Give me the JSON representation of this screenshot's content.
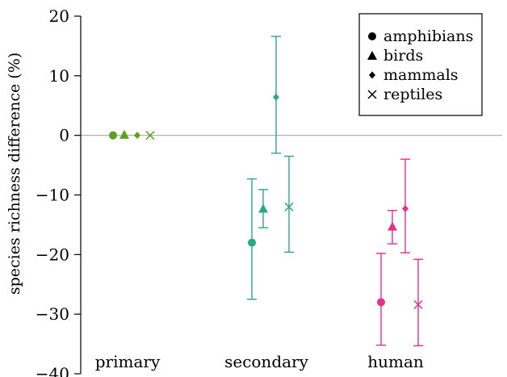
{
  "chart_data": {
    "type": "scatter",
    "title": "",
    "xlabel": "",
    "ylabel": "species richness difference (%)",
    "ylim": [
      -40,
      20
    ],
    "yticks": [
      20,
      10,
      0,
      -10,
      -20,
      -30,
      -40
    ],
    "yticks_labels": [
      "20",
      "10",
      "0",
      "−10",
      "−20",
      "−30",
      "−40"
    ],
    "categories": [
      "primary",
      "secondary",
      "human"
    ],
    "grid": false,
    "zero_line": true,
    "legend_position": "top-right",
    "colors": {
      "primary": "#5aa21e",
      "secondary": "#2aaa82",
      "human": "#e8308a"
    },
    "series": [
      {
        "name": "amphibians",
        "marker": "circle",
        "values": [
          0,
          -18,
          -28
        ],
        "lower": [
          0,
          -27.5,
          -35.2
        ],
        "upper": [
          0,
          -7.3,
          -19.8
        ]
      },
      {
        "name": "birds",
        "marker": "triangle",
        "values": [
          0.1,
          -12.3,
          -15.3
        ],
        "lower": [
          0.1,
          -15.5,
          -18.2
        ],
        "upper": [
          0.1,
          -9.1,
          -12.6
        ]
      },
      {
        "name": "mammals",
        "marker": "diamond",
        "values": [
          0,
          6.4,
          -12.3
        ],
        "lower": [
          0,
          -3,
          -19.7
        ],
        "upper": [
          0,
          16.6,
          -4
        ]
      },
      {
        "name": "reptiles",
        "marker": "cross",
        "values": [
          0,
          -12,
          -28.4
        ],
        "lower": [
          0,
          -19.6,
          -35.3
        ],
        "upper": [
          0,
          -3.5,
          -20.8
        ]
      }
    ]
  }
}
